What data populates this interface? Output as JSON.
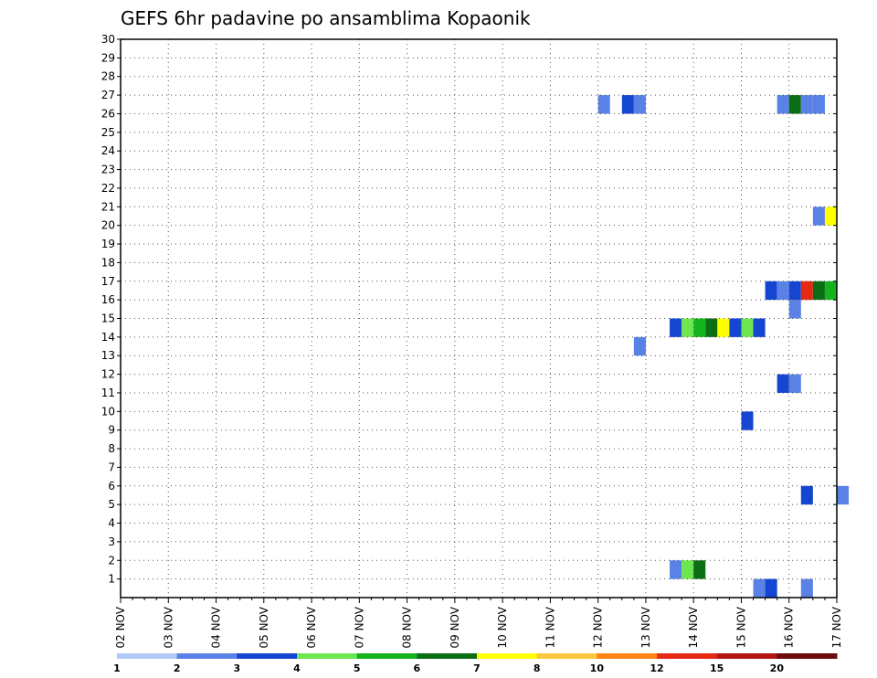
{
  "chart_data": {
    "type": "heatmap",
    "title": "GEFS 6hr padavine po ansamblima Kopaonik",
    "xlabel": "",
    "ylabel": "",
    "x_ticks": [
      "02 NOV",
      "03 NOV",
      "04 NOV",
      "05 NOV",
      "06 NOV",
      "07 NOV",
      "08 NOV",
      "09 NOV",
      "10 NOV",
      "11 NOV",
      "12 NOV",
      "13 NOV",
      "14 NOV",
      "15 NOV",
      "16 NOV",
      "17 NOV"
    ],
    "y_ticks": [
      1,
      2,
      3,
      4,
      5,
      6,
      7,
      8,
      9,
      10,
      11,
      12,
      13,
      14,
      15,
      16,
      17,
      18,
      19,
      20,
      21,
      22,
      23,
      24,
      25,
      26,
      27,
      28,
      29,
      30
    ],
    "xlim_days": [
      0,
      15
    ],
    "ylim": [
      0,
      30
    ],
    "grid": true,
    "colorbar": {
      "labels": [
        "1",
        "2",
        "3",
        "4",
        "5",
        "6",
        "7",
        "8",
        "10",
        "12",
        "15",
        "20"
      ],
      "colors": [
        "#b4c8f5",
        "#5a82e6",
        "#1446d2",
        "#6ee650",
        "#14b41e",
        "#0a6e14",
        "#ffff00",
        "#ffc83c",
        "#ff8214",
        "#e62814",
        "#b41414",
        "#6e0a0a"
      ]
    },
    "cells": [
      {
        "member": 0,
        "start": 13.25,
        "end": 13.5,
        "level": 1
      },
      {
        "member": 0,
        "start": 13.5,
        "end": 13.75,
        "level": 2
      },
      {
        "member": 0,
        "start": 14.25,
        "end": 14.5,
        "level": 1
      },
      {
        "member": 1,
        "start": 11.5,
        "end": 11.75,
        "level": 1
      },
      {
        "member": 1,
        "start": 11.75,
        "end": 12.0,
        "level": 3
      },
      {
        "member": 1,
        "start": 12.0,
        "end": 12.25,
        "level": 5
      },
      {
        "member": 5,
        "start": 14.25,
        "end": 14.5,
        "level": 2
      },
      {
        "member": 5,
        "start": 15.0,
        "end": 15.25,
        "level": 1
      },
      {
        "member": 9,
        "start": 13.0,
        "end": 13.25,
        "level": 2
      },
      {
        "member": 11,
        "start": 13.75,
        "end": 14.0,
        "level": 2
      },
      {
        "member": 11,
        "start": 14.0,
        "end": 14.25,
        "level": 1
      },
      {
        "member": 13,
        "start": 10.75,
        "end": 11.0,
        "level": 1
      },
      {
        "member": 14,
        "start": 11.5,
        "end": 11.75,
        "level": 2
      },
      {
        "member": 14,
        "start": 11.75,
        "end": 12.0,
        "level": 3
      },
      {
        "member": 14,
        "start": 12.0,
        "end": 12.25,
        "level": 4
      },
      {
        "member": 14,
        "start": 12.25,
        "end": 12.5,
        "level": 5
      },
      {
        "member": 14,
        "start": 12.5,
        "end": 12.75,
        "level": 6
      },
      {
        "member": 14,
        "start": 12.75,
        "end": 13.0,
        "level": 2
      },
      {
        "member": 14,
        "start": 13.0,
        "end": 13.25,
        "level": 3
      },
      {
        "member": 14,
        "start": 13.25,
        "end": 13.5,
        "level": 2
      },
      {
        "member": 15,
        "start": 14.0,
        "end": 14.25,
        "level": 1
      },
      {
        "member": 16,
        "start": 13.5,
        "end": 13.75,
        "level": 2
      },
      {
        "member": 16,
        "start": 13.75,
        "end": 14.0,
        "level": 1
      },
      {
        "member": 16,
        "start": 14.0,
        "end": 14.25,
        "level": 2
      },
      {
        "member": 16,
        "start": 14.25,
        "end": 14.5,
        "level": 9
      },
      {
        "member": 16,
        "start": 14.5,
        "end": 14.75,
        "level": 5
      },
      {
        "member": 16,
        "start": 14.75,
        "end": 15.0,
        "level": 4
      },
      {
        "member": 20,
        "start": 14.5,
        "end": 14.75,
        "level": 1
      },
      {
        "member": 20,
        "start": 14.75,
        "end": 15.0,
        "level": 6
      },
      {
        "member": 26,
        "start": 10.0,
        "end": 10.25,
        "level": 1
      },
      {
        "member": 26,
        "start": 10.5,
        "end": 10.75,
        "level": 2
      },
      {
        "member": 26,
        "start": 10.75,
        "end": 11.0,
        "level": 1
      },
      {
        "member": 26,
        "start": 13.75,
        "end": 14.0,
        "level": 1
      },
      {
        "member": 26,
        "start": 14.0,
        "end": 14.25,
        "level": 5
      },
      {
        "member": 26,
        "start": 14.25,
        "end": 14.5,
        "level": 1
      },
      {
        "member": 26,
        "start": 14.5,
        "end": 14.75,
        "level": 1
      }
    ]
  }
}
